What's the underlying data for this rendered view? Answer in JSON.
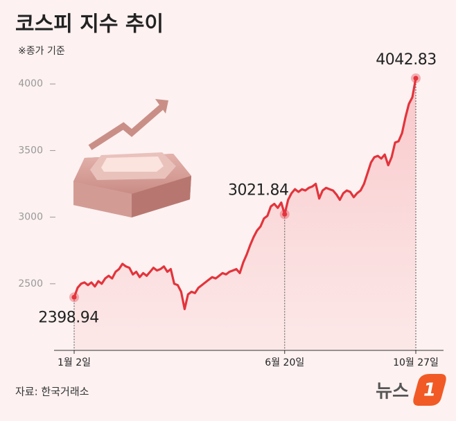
{
  "chart_data": {
    "type": "line",
    "title": "코스피 지수 추이",
    "subtitle": "※종가 기준",
    "source": "자료: 한국거래소",
    "logo": {
      "text": "뉴스",
      "badge": "1"
    },
    "color": "#e3343c",
    "ylim": [
      2000,
      4100
    ],
    "yticks": [
      2500,
      3000,
      3500,
      4000
    ],
    "categories": [
      "1월 2일",
      null,
      null,
      null,
      null,
      null,
      null,
      null,
      null,
      null,
      null,
      null,
      null,
      null,
      null,
      null,
      null,
      null,
      null,
      null,
      null,
      null,
      null,
      null,
      null,
      null,
      null,
      null,
      null,
      null,
      null,
      null,
      null,
      null,
      null,
      null,
      null,
      null,
      null,
      null,
      null,
      null,
      null,
      null,
      null,
      null,
      null,
      null,
      null,
      null,
      null,
      null,
      null,
      null,
      null,
      null,
      null,
      null,
      null,
      null,
      null,
      "6월 20일",
      null,
      null,
      null,
      null,
      null,
      null,
      null,
      null,
      null,
      null,
      null,
      null,
      null,
      null,
      null,
      null,
      null,
      null,
      null,
      null,
      null,
      null,
      null,
      null,
      null,
      null,
      null,
      null,
      null,
      null,
      null,
      null,
      null,
      null,
      null,
      null,
      null,
      "10월 27일"
    ],
    "values": [
      2398.94,
      2470,
      2500,
      2510,
      2490,
      2510,
      2480,
      2520,
      2500,
      2540,
      2560,
      2540,
      2590,
      2610,
      2650,
      2630,
      2620,
      2570,
      2590,
      2550,
      2580,
      2560,
      2590,
      2620,
      2600,
      2610,
      2630,
      2590,
      2610,
      2500,
      2490,
      2440,
      2310,
      2420,
      2440,
      2430,
      2470,
      2490,
      2510,
      2530,
      2550,
      2540,
      2560,
      2580,
      2570,
      2590,
      2600,
      2610,
      2580,
      2660,
      2720,
      2790,
      2850,
      2900,
      2930,
      2990,
      3010,
      3080,
      3100,
      3070,
      3110,
      3021.84,
      3130,
      3180,
      3210,
      3190,
      3210,
      3200,
      3220,
      3230,
      3250,
      3140,
      3200,
      3220,
      3210,
      3200,
      3170,
      3130,
      3180,
      3200,
      3190,
      3150,
      3180,
      3200,
      3250,
      3330,
      3410,
      3450,
      3460,
      3440,
      3470,
      3390,
      3450,
      3560,
      3570,
      3630,
      3750,
      3850,
      3900,
      4042.83
    ]
  }
}
